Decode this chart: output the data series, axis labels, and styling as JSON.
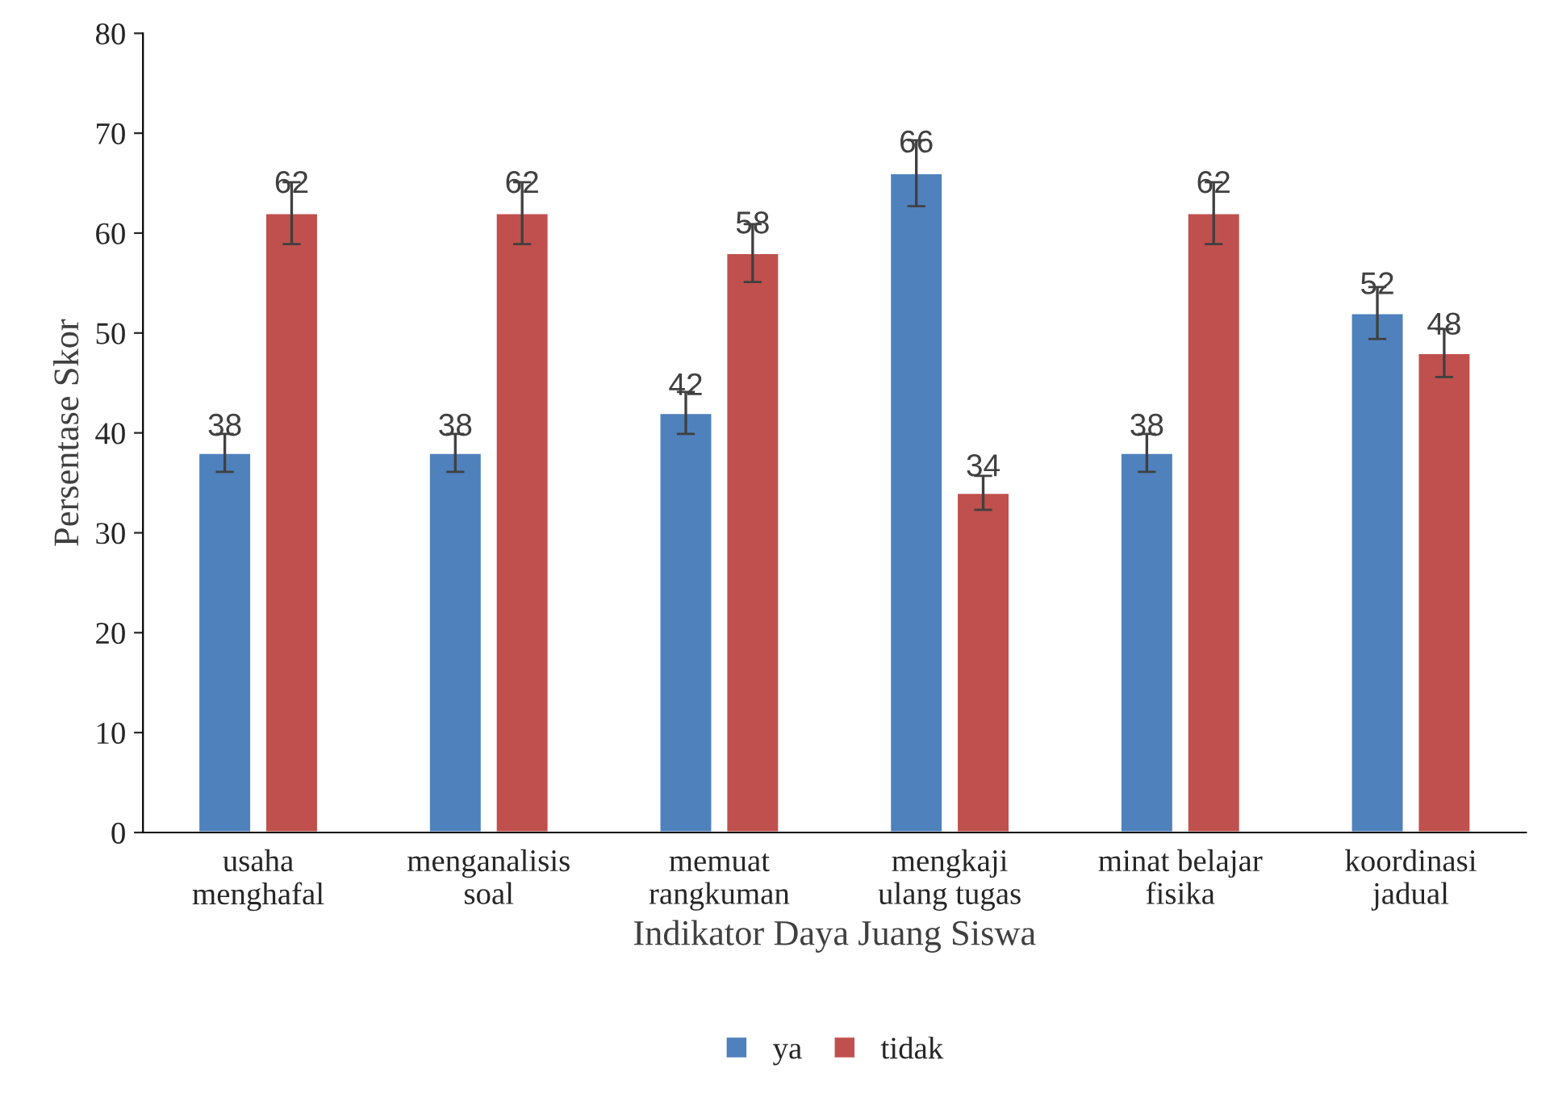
{
  "chart_data": {
    "type": "bar",
    "xlabel": "Indikator Daya Juang Siswa",
    "ylabel": "Persentase Skor",
    "categories": [
      "usaha\nmenghafal",
      "menganalisis\nsoal",
      "memuat\nrangkuman",
      "mengkaji\nulang tugas",
      "minat belajar\nfisika",
      "koordinasi\njadual"
    ],
    "series": [
      {
        "name": "ya",
        "color": "#4f81bd",
        "values": [
          38,
          38,
          42,
          66,
          38,
          52
        ],
        "errors": [
          1.9,
          1.9,
          2.1,
          3.3,
          1.9,
          2.6
        ]
      },
      {
        "name": "tidak",
        "color": "#c0504d",
        "values": [
          62,
          62,
          58,
          34,
          62,
          48
        ],
        "errors": [
          3.1,
          3.1,
          2.9,
          1.7,
          3.1,
          2.4
        ]
      }
    ],
    "ylim": [
      0,
      80
    ],
    "yticks": [
      0,
      10,
      20,
      30,
      40,
      50,
      60,
      70,
      80
    ],
    "grid": false,
    "legend": "bottom",
    "data_labels": true
  }
}
